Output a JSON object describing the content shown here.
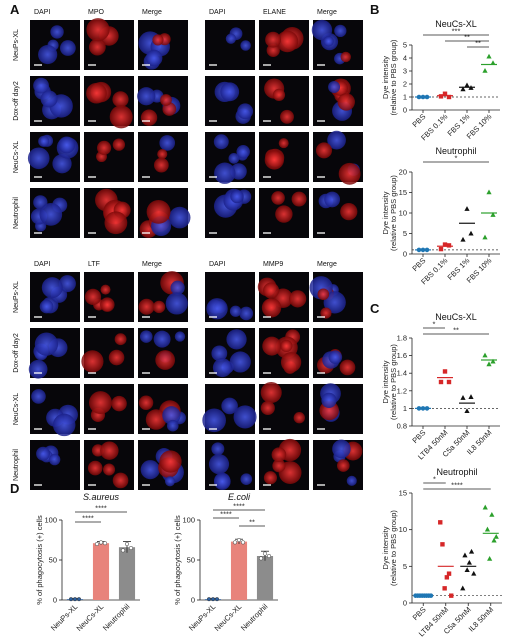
{
  "panel_letters": {
    "A": "A",
    "B": "B",
    "C": "C",
    "D": "D"
  },
  "micrographs": [
    {
      "markers": [
        "DAPI",
        "MPO",
        "Merge"
      ],
      "rows": [
        "NeuPs-XL",
        "Dox-off day2",
        "NeuCs-XL",
        "Neutrophil"
      ]
    },
    {
      "markers": [
        "DAPI",
        "ELANE",
        "Merge"
      ],
      "rows": []
    },
    {
      "markers": [
        "DAPI",
        "LTF",
        "Merge"
      ],
      "rows": [
        "NeuPs-XL",
        "Dox-off day2",
        "NeuCs-XL",
        "Neutrophil"
      ]
    },
    {
      "markers": [
        "DAPI",
        "MMP9",
        "Merge"
      ],
      "rows": []
    }
  ],
  "colors": {
    "PBS": "#1f77b4",
    "low": "#d62728",
    "mid": "#111111",
    "high": "#2ca02c",
    "bar_neup": "#2c5f9e",
    "bar_neuc": "#e8837b",
    "bar_neut": "#8c8c8c",
    "dapi": "#1b2aa8",
    "red_stain": "#c1141a"
  },
  "chart_data": [
    {
      "type": "scatter",
      "panel": "B",
      "title": "NeuCs-XL",
      "ylabel": "Dye intensity (relative to PBS group)",
      "categories": [
        "PBS",
        "FBS 0.1%",
        "FBS 1%",
        "FBS 10%"
      ],
      "ylim": [
        0,
        5
      ],
      "yticks": [
        0,
        1,
        2,
        3,
        4,
        5
      ],
      "reference_line": 1,
      "points": [
        [
          1.0,
          1.0,
          1.0
        ],
        [
          1.05,
          1.25,
          1.0
        ],
        [
          1.6,
          1.9,
          1.7
        ],
        [
          3.0,
          4.1,
          3.6
        ]
      ],
      "means": [
        1.0,
        1.1,
        1.75,
        3.5
      ],
      "significance": [
        "***",
        "**",
        "**"
      ]
    },
    {
      "type": "scatter",
      "panel": "B",
      "title": "Neutrophil",
      "ylabel": "Dye intensity (relative to PBS group)",
      "categories": [
        "PBS",
        "FBS 0.1%",
        "FBS 1%",
        "FBS 10%"
      ],
      "ylim": [
        0,
        20
      ],
      "yticks": [
        0,
        5,
        10,
        15,
        20
      ],
      "reference_line": 1,
      "points": [
        [
          1.0,
          1.0,
          1.0
        ],
        [
          1.2,
          2.3,
          2.1
        ],
        [
          3.5,
          11.0,
          5.0
        ],
        [
          4.0,
          15.0,
          9.5
        ]
      ],
      "means": [
        1.0,
        1.9,
        7.5,
        10.0
      ],
      "significance": [
        "*"
      ]
    },
    {
      "type": "scatter",
      "panel": "C",
      "title": "NeuCs-XL",
      "ylabel": "Dye intensity (relative to PBS group)",
      "categories": [
        "PBS",
        "LTB4 50nM",
        "C5a 50nM",
        "IL8 50nM"
      ],
      "ylim": [
        0.8,
        1.8
      ],
      "yticks": [
        0.8,
        1.0,
        1.2,
        1.4,
        1.6,
        1.8
      ],
      "reference_line": 1.0,
      "points": [
        [
          1.0,
          1.0,
          1.0
        ],
        [
          1.3,
          1.42,
          1.3
        ],
        [
          1.12,
          0.97,
          1.13
        ],
        [
          1.6,
          1.5,
          1.53
        ]
      ],
      "means": [
        1.0,
        1.35,
        1.06,
        1.55
      ],
      "significance": [
        "*",
        "**"
      ]
    },
    {
      "type": "scatter",
      "panel": "C",
      "title": "Neutrophil",
      "ylabel": "Dye intensity (relative to PBS group)",
      "categories": [
        "PBS",
        "LTB4 50nM",
        "C5a 50nM",
        "IL8 50nM"
      ],
      "ylim": [
        0,
        15
      ],
      "yticks": [
        0,
        5,
        10,
        15
      ],
      "reference_line": 1,
      "points": [
        [
          1.0,
          1.0,
          1.0,
          1.0,
          1.0,
          1.0,
          1.0,
          1.0
        ],
        [
          11.0,
          8.0,
          2.0,
          3.5,
          4.0,
          1.0
        ],
        [
          2.0,
          6.5,
          4.5,
          5.5,
          7.0,
          4.0
        ],
        [
          13.0,
          10.0,
          6.0,
          12.0,
          8.5,
          9.0
        ]
      ],
      "means": [
        1.0,
        5.0,
        5.0,
        9.5
      ],
      "significance": [
        "*",
        "****"
      ]
    },
    {
      "type": "bar",
      "panel": "D",
      "title": "S.aureus",
      "ylabel": "% of phagocytosis (+) cells",
      "categories": [
        "NeuPs-XL",
        "NeuCs-XL",
        "Neutrophil"
      ],
      "values": [
        1,
        71,
        66
      ],
      "errors": [
        1,
        2,
        7
      ],
      "points": [
        [
          1,
          1,
          1
        ],
        [
          70,
          72,
          71
        ],
        [
          62,
          70,
          65
        ]
      ],
      "ylim": [
        0,
        100
      ],
      "yticks": [
        0,
        50,
        100
      ],
      "significance": [
        "****",
        "****"
      ]
    },
    {
      "type": "bar",
      "panel": "D",
      "title": "E.coli",
      "ylabel": "% of phagocytosis (+) cells",
      "categories": [
        "NeuPs-XL",
        "NeuCs-XL",
        "Neutrophil"
      ],
      "values": [
        1,
        73,
        55
      ],
      "errors": [
        1,
        3,
        6
      ],
      "points": [
        [
          1,
          1,
          1
        ],
        [
          72,
          75,
          72
        ],
        [
          52,
          58,
          55
        ]
      ],
      "ylim": [
        0,
        100
      ],
      "yticks": [
        0,
        50,
        100
      ],
      "significance": [
        "****",
        "****",
        "**"
      ]
    }
  ]
}
